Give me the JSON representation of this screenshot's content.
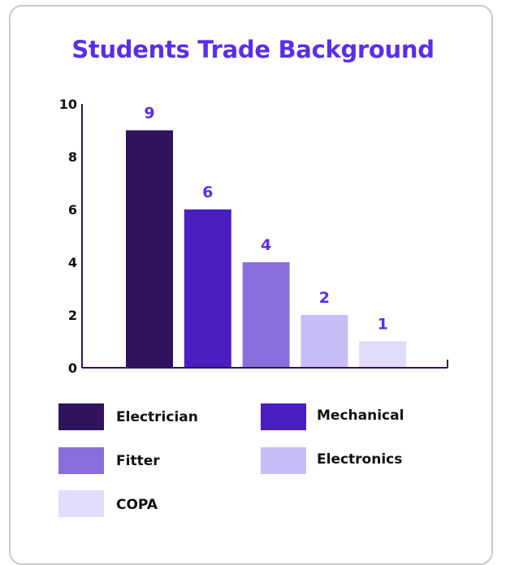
{
  "chart_data": {
    "type": "bar",
    "title": "Students Trade Background",
    "categories": [
      "Electrician",
      "Mechanical",
      "Fitter",
      "Electronics",
      "COPA"
    ],
    "values": [
      9,
      6,
      4,
      2,
      1
    ],
    "colors": [
      "#2f135c",
      "#4a1fc1",
      "#8a6fdc",
      "#c7bdf6",
      "#e1dcfb"
    ],
    "value_label_color": "#5b2ee6",
    "ylim": [
      0,
      10
    ],
    "yticks": [
      "0",
      "2",
      "4",
      "6",
      "8",
      "10"
    ],
    "xlabel": "",
    "ylabel": "",
    "grid": false,
    "legend_position": "bottom"
  }
}
